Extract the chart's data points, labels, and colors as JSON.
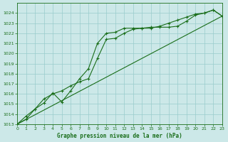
{
  "title": "Graphe pression niveau de la mer (hPa)",
  "background_color": "#cce8e8",
  "grid_color": "#99cccc",
  "line_color": "#1a6e1a",
  "xmin": 0,
  "xmax": 23,
  "ymin": 1013,
  "ymax": 1025,
  "series1_x": [
    0,
    1,
    2,
    3,
    4,
    5,
    6,
    7,
    8,
    9,
    10,
    11,
    12,
    13,
    14,
    15,
    16,
    17,
    18,
    19,
    20,
    21,
    22,
    23
  ],
  "series1_y": [
    1013.0,
    1013.8,
    1014.5,
    1015.1,
    1016.1,
    1015.2,
    1016.3,
    1017.5,
    1018.5,
    1021.0,
    1022.0,
    1022.1,
    1022.5,
    1022.5,
    1022.5,
    1022.6,
    1022.6,
    1022.6,
    1022.7,
    1023.2,
    1023.8,
    1024.0,
    1024.3,
    1023.7
  ],
  "series2_x": [
    0,
    1,
    2,
    3,
    4,
    5,
    6,
    7,
    8,
    9,
    10,
    11,
    12,
    13,
    14,
    15,
    16,
    17,
    18,
    19,
    20,
    21,
    22,
    23
  ],
  "series2_y": [
    1013.0,
    1013.5,
    1014.5,
    1015.5,
    1016.0,
    1016.3,
    1016.8,
    1017.2,
    1017.5,
    1019.5,
    1021.4,
    1021.5,
    1022.0,
    1022.4,
    1022.5,
    1022.5,
    1022.7,
    1023.0,
    1023.3,
    1023.6,
    1023.9,
    1024.0,
    1024.3,
    1023.7
  ],
  "series3_x": [
    0,
    23
  ],
  "series3_y": [
    1013.0,
    1023.7
  ],
  "yticks": [
    1013,
    1014,
    1015,
    1016,
    1017,
    1018,
    1019,
    1020,
    1021,
    1022,
    1023,
    1024
  ],
  "xticks": [
    0,
    1,
    2,
    3,
    4,
    5,
    6,
    7,
    8,
    9,
    10,
    11,
    12,
    13,
    14,
    15,
    16,
    17,
    18,
    19,
    20,
    21,
    22,
    23
  ]
}
